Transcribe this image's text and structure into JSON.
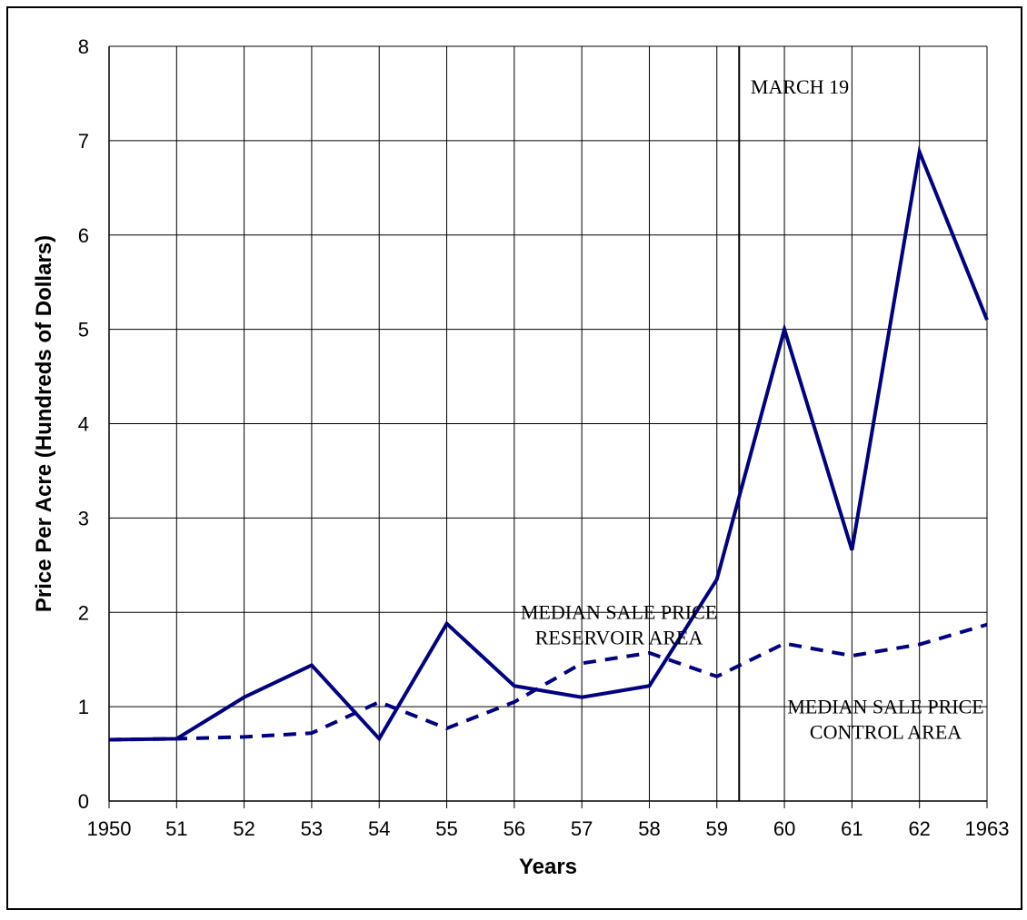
{
  "chart_data": {
    "type": "line",
    "xlabel": "Years",
    "ylabel": "Price Per Acre (Hundreds of Dollars)",
    "x_tick_labels": [
      "1950",
      "51",
      "52",
      "53",
      "54",
      "55",
      "56",
      "57",
      "58",
      "59",
      "60",
      "61",
      "62",
      "1963"
    ],
    "x": [
      1950,
      1951,
      1952,
      1953,
      1954,
      1955,
      1956,
      1957,
      1958,
      1959,
      1960,
      1961,
      1962,
      1963
    ],
    "y_ticks": [
      0,
      1,
      2,
      3,
      4,
      5,
      6,
      7,
      8
    ],
    "xlim": [
      1950,
      1963
    ],
    "ylim": [
      0,
      8
    ],
    "grid": true,
    "series": [
      {
        "style": "solid",
        "color": "#000080",
        "values": [
          0.65,
          0.66,
          1.1,
          1.44,
          0.66,
          1.88,
          1.22,
          1.1,
          1.22,
          2.35,
          5.0,
          2.66,
          6.88,
          5.1
        ]
      },
      {
        "style": "dashed",
        "color": "#000080",
        "values": [
          0.65,
          0.66,
          0.68,
          0.72,
          1.05,
          0.77,
          1.05,
          1.46,
          1.57,
          1.32,
          1.67,
          1.54,
          1.66,
          1.87
        ]
      }
    ],
    "annotations": [
      {
        "lines": [
          "MARCH 19"
        ],
        "x": 1959.5,
        "y": 7.5,
        "align": "start"
      },
      {
        "lines": [
          "MEDIAN SALE PRICE",
          "RESERVOIR AREA"
        ],
        "x": 1957.55,
        "y": 1.93,
        "align": "middle"
      },
      {
        "lines": [
          "MEDIAN SALE PRICE",
          "CONTROL AREA"
        ],
        "x": 1961.5,
        "y": 0.93,
        "align": "middle"
      }
    ],
    "marker_line": {
      "label": "MARCH 19",
      "x": 1959.33
    }
  }
}
